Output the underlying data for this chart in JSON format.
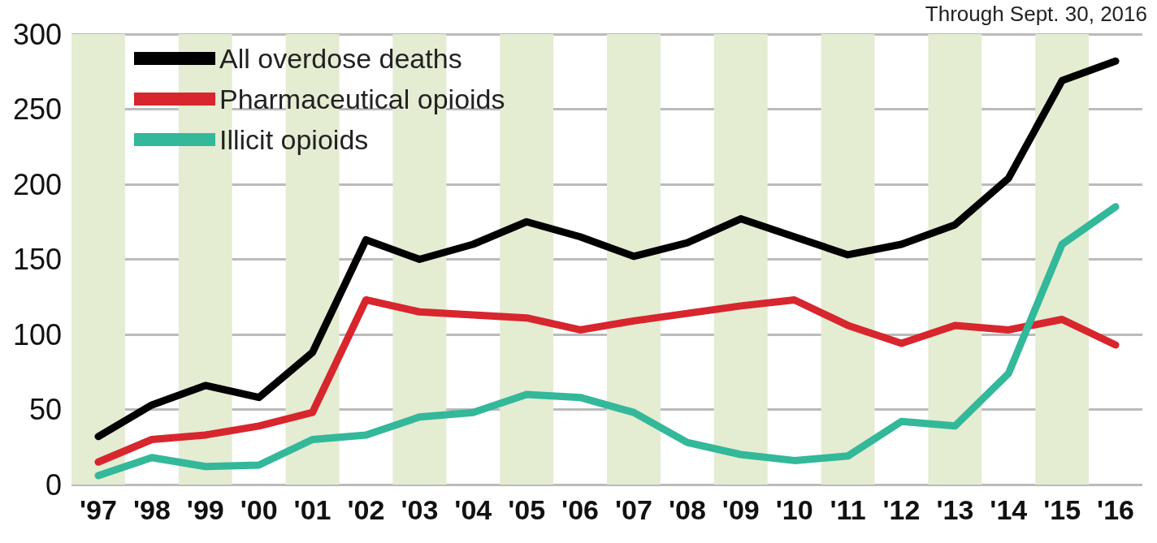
{
  "chart_data": {
    "type": "line",
    "annotations": [
      "Through Sept. 30, 2016"
    ],
    "categories": [
      "'97",
      "'98",
      "'99",
      "'00",
      "'01",
      "'02",
      "'03",
      "'04",
      "'05",
      "'06",
      "'07",
      "'08",
      "'09",
      "'10",
      "'11",
      "'12",
      "'13",
      "'14",
      "'15",
      "'16"
    ],
    "series": [
      {
        "name": "All overdose deaths",
        "color": "#000000",
        "values": [
          32,
          53,
          66,
          58,
          88,
          163,
          150,
          160,
          175,
          165,
          152,
          161,
          177,
          165,
          153,
          160,
          173,
          204,
          269,
          282
        ]
      },
      {
        "name": "Pharmaceutical opioids",
        "color": "#d7262e",
        "values": [
          15,
          30,
          33,
          39,
          48,
          123,
          115,
          113,
          111,
          103,
          109,
          114,
          119,
          123,
          106,
          94,
          106,
          103,
          110,
          93
        ]
      },
      {
        "name": "Illicit opioids",
        "color": "#33b89a",
        "values": [
          6,
          18,
          12,
          13,
          30,
          33,
          45,
          48,
          60,
          58,
          48,
          28,
          20,
          16,
          19,
          42,
          39,
          74,
          160,
          185
        ]
      }
    ],
    "ylim": [
      0,
      300
    ],
    "yticks": [
      0,
      50,
      100,
      150,
      200,
      250,
      300
    ],
    "bands": [
      {
        "axis": "x",
        "from": "'97",
        "to": "'97",
        "color": "#e4ecd2"
      },
      {
        "axis": "x",
        "from": "'99",
        "to": "'99",
        "color": "#e4ecd2"
      },
      {
        "axis": "x",
        "from": "'01",
        "to": "'01",
        "color": "#e4ecd2"
      },
      {
        "axis": "x",
        "from": "'03",
        "to": "'03",
        "color": "#e4ecd2"
      },
      {
        "axis": "x",
        "from": "'05",
        "to": "'05",
        "color": "#e4ecd2"
      },
      {
        "axis": "x",
        "from": "'07",
        "to": "'07",
        "color": "#e4ecd2"
      },
      {
        "axis": "x",
        "from": "'09",
        "to": "'09",
        "color": "#e4ecd2"
      },
      {
        "axis": "x",
        "from": "'11",
        "to": "'11",
        "color": "#e4ecd2"
      },
      {
        "axis": "x",
        "from": "'13",
        "to": "'13",
        "color": "#e4ecd2"
      },
      {
        "axis": "x",
        "from": "'15",
        "to": "'15",
        "color": "#e4ecd2"
      }
    ],
    "grid": "y",
    "legend": "top left",
    "line_style": "solid"
  }
}
